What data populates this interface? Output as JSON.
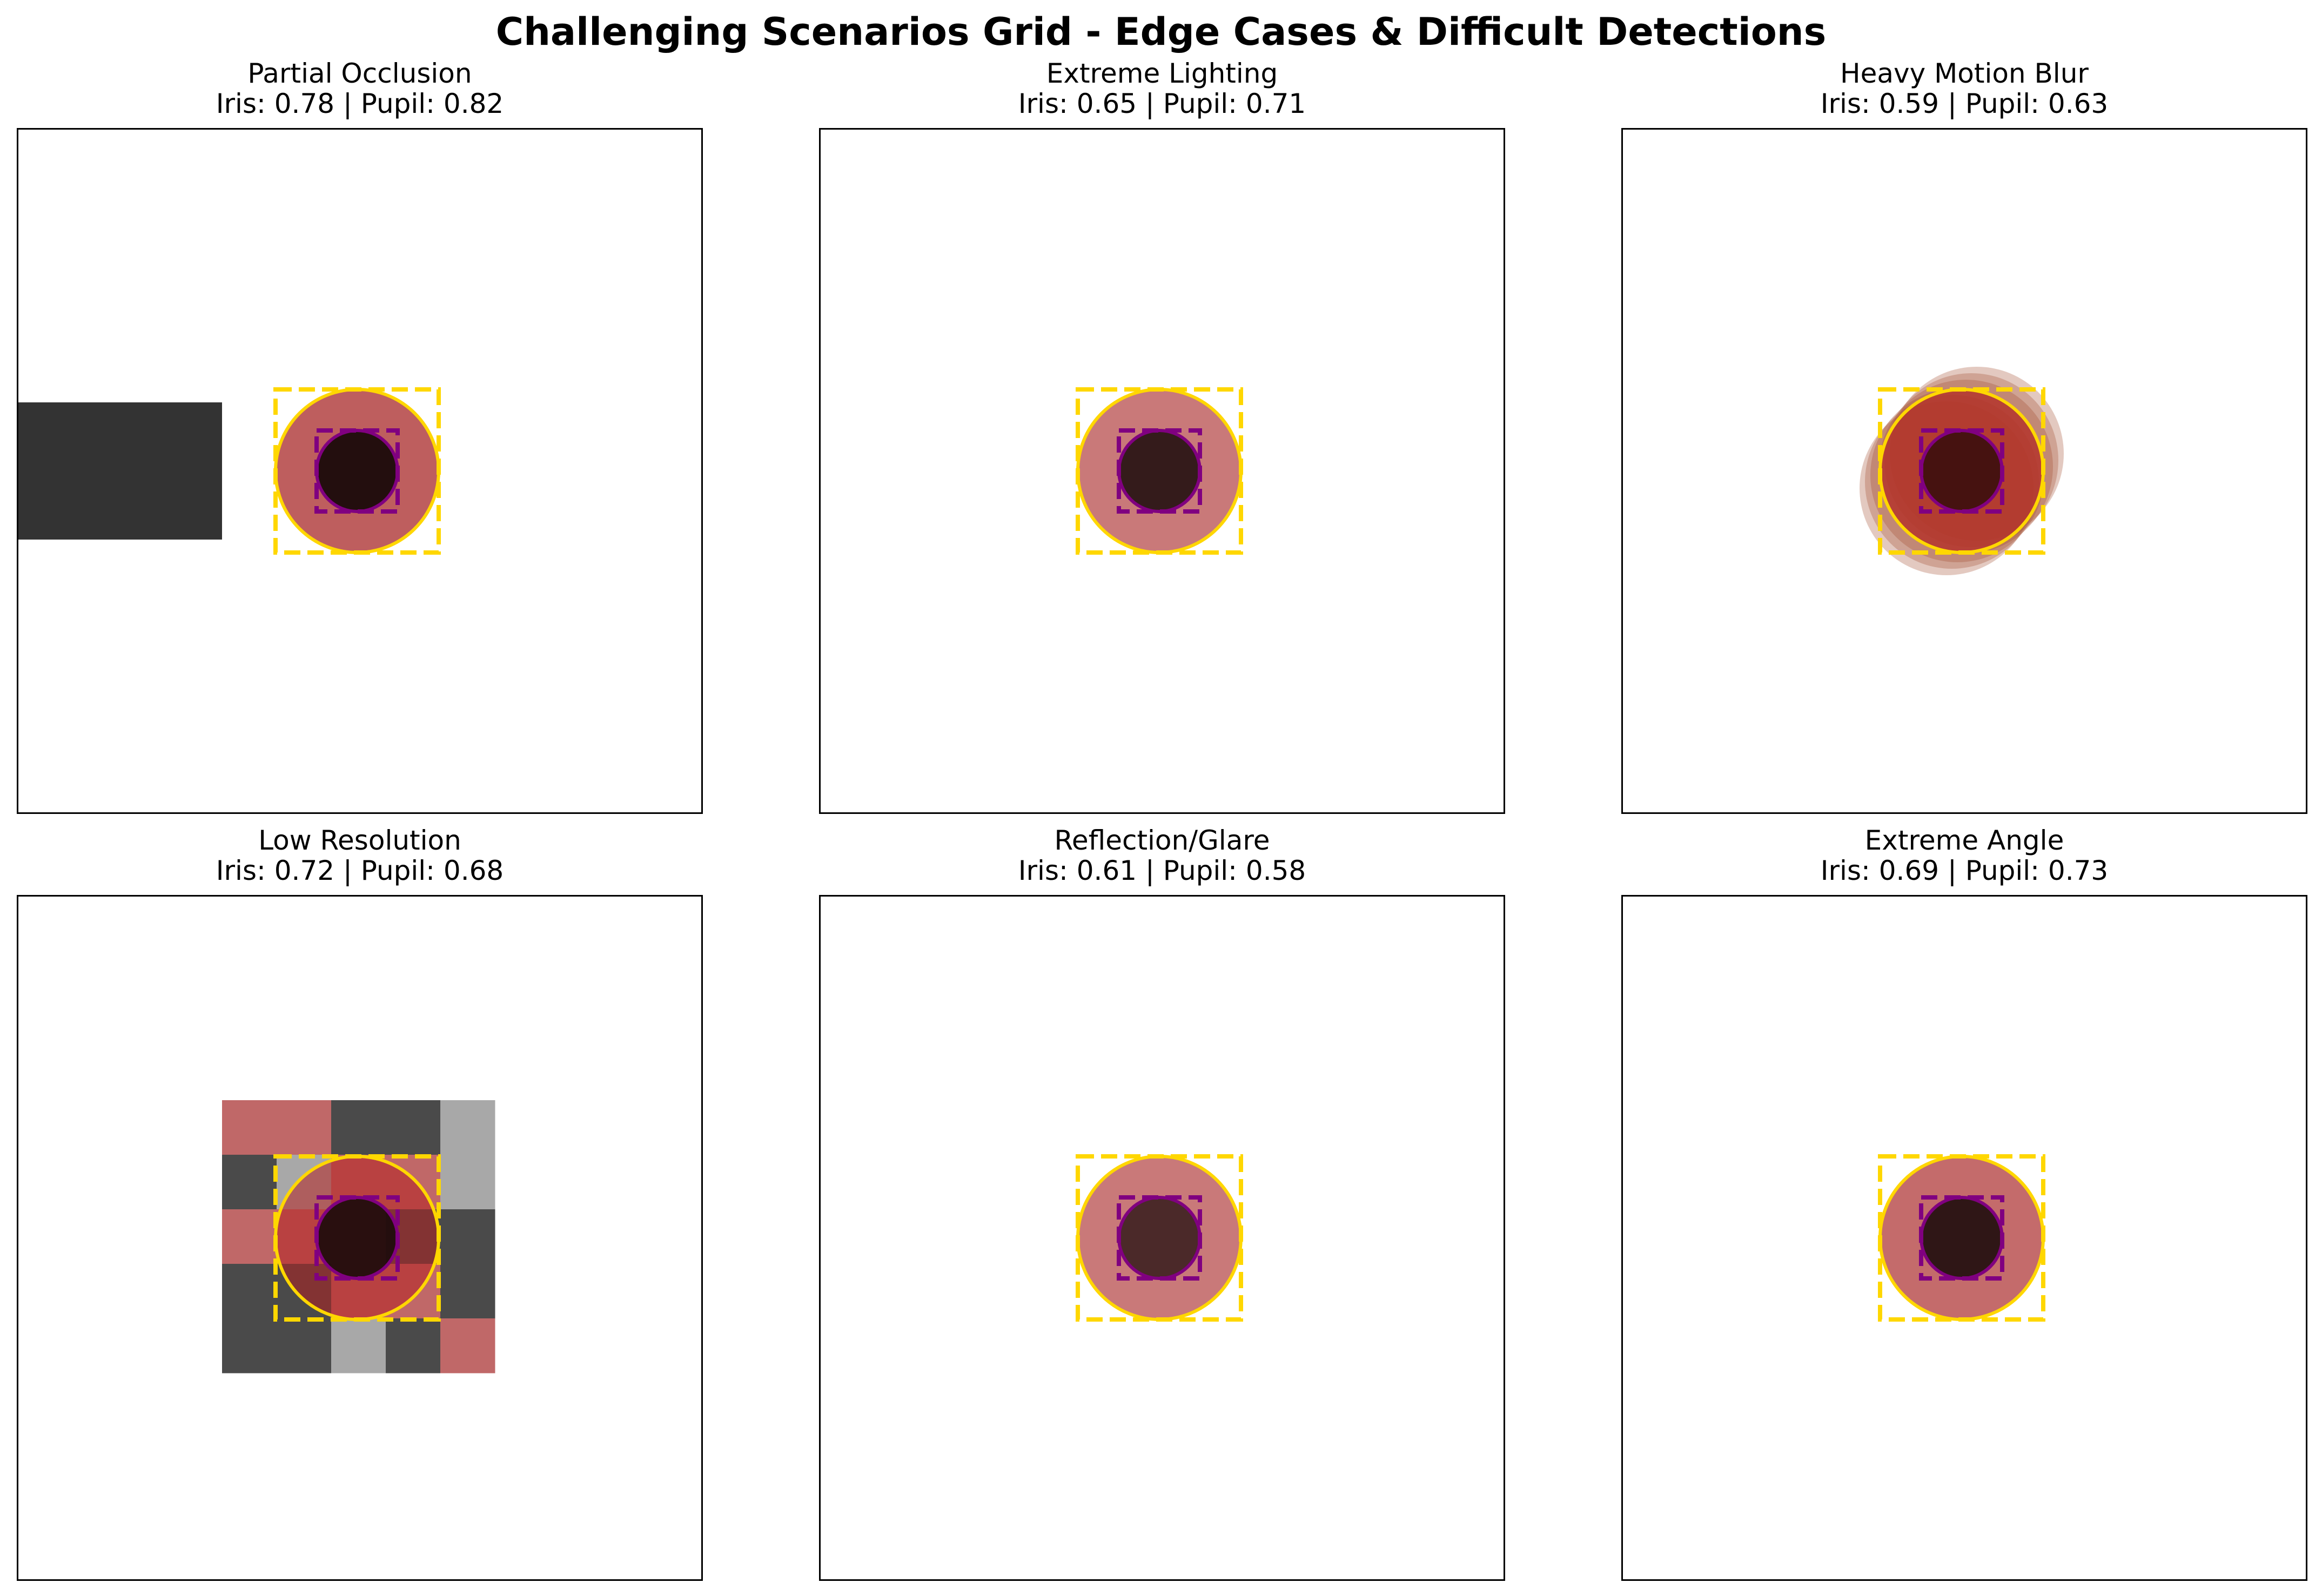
{
  "title": "Challenging Scenarios Grid - Edge Cases & Difficult Detections",
  "colors": {
    "iris_fill": "#b03a3a",
    "pupil_fill": "#1a0a0a",
    "iris_box": "#ffd700",
    "pupil_box": "#800080",
    "occluder": "#333333",
    "axes_edge": "#000000",
    "background": "#ffffff"
  },
  "chart_data": [
    {
      "type": "scenario",
      "name": "Partial Occlusion",
      "metrics_label": "Iris: 0.78 | Pupil: 0.82",
      "iris_score": 0.78,
      "pupil_score": 0.82,
      "effect": "occlusion",
      "grid": false
    },
    {
      "type": "scenario",
      "name": "Extreme Lighting",
      "metrics_label": "Iris: 0.65 | Pupil: 0.71",
      "iris_score": 0.65,
      "pupil_score": 0.71,
      "effect": "lighting",
      "grid": false
    },
    {
      "type": "scenario",
      "name": "Heavy Motion Blur",
      "metrics_label": "Iris: 0.59 | Pupil: 0.63",
      "iris_score": 0.59,
      "pupil_score": 0.63,
      "effect": "motion_blur",
      "grid": false
    },
    {
      "type": "scenario",
      "name": "Low Resolution",
      "metrics_label": "Iris: 0.72 | Pupil: 0.68",
      "iris_score": 0.72,
      "pupil_score": 0.68,
      "effect": "low_resolution",
      "grid": false
    },
    {
      "type": "scenario",
      "name": "Reflection/Glare",
      "metrics_label": "Iris: 0.61 | Pupil: 0.58",
      "iris_score": 0.61,
      "pupil_score": 0.58,
      "effect": "glare",
      "grid": false
    },
    {
      "type": "scenario",
      "name": "Extreme Angle",
      "metrics_label": "Iris: 0.69 | Pupil: 0.73",
      "iris_score": 0.69,
      "pupil_score": 0.73,
      "effect": "angle",
      "grid": false
    }
  ]
}
